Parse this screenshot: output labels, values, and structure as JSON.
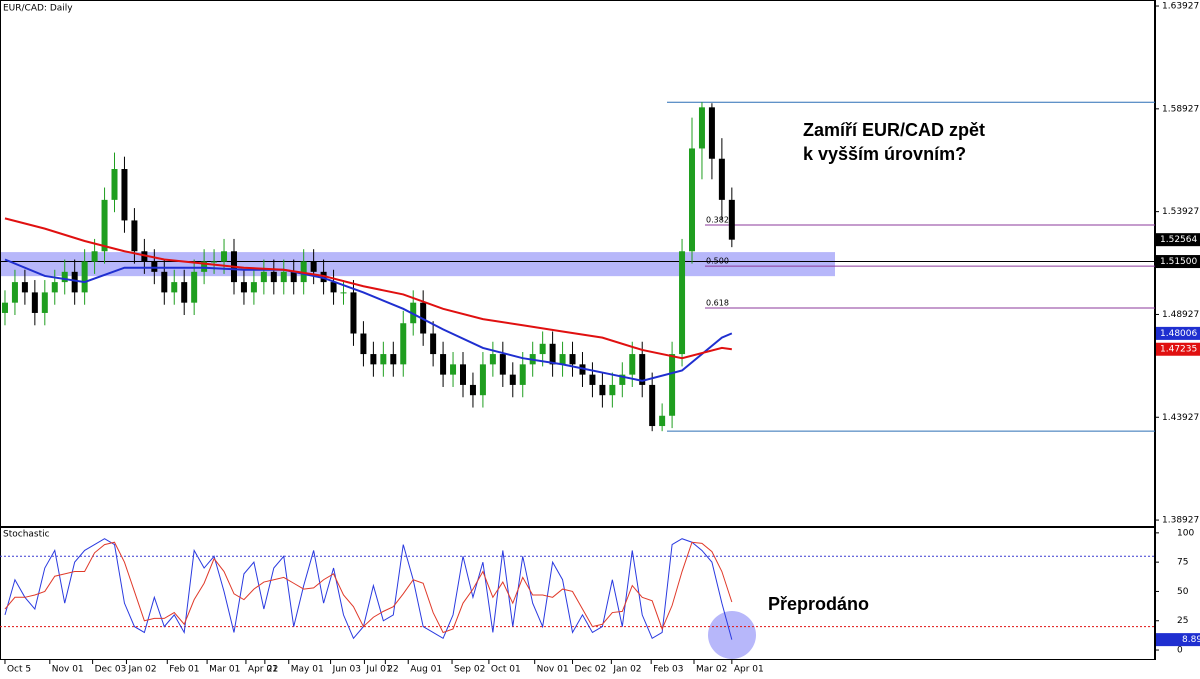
{
  "chart_data": {
    "type": "candlestick",
    "title": "EUR/CAD: Daily",
    "annotation": "Zamíří EUR/CAD zpět",
    "annotation2": "k vyšším úrovním?",
    "ylim": [
      1.3859,
      1.6422
    ],
    "yticks": [
      1.63927,
      1.58927,
      1.53927,
      1.48927,
      1.43927,
      1.38927
    ],
    "xlim": [
      -0.5,
      115.5
    ],
    "xticks": [
      {
        "value": 0,
        "label": "Oct 5"
      },
      {
        "value": 4.5,
        "label": "Nov 01"
      },
      {
        "value": 8.8,
        "label": "Dec 03"
      },
      {
        "value": 12.2,
        "label": "Jan 02"
      },
      {
        "value": 16.3,
        "label": "Feb 01"
      },
      {
        "value": 20.3,
        "label": "Mar 01"
      },
      {
        "value": 24.2,
        "label": "Apr 01"
      },
      {
        "value": 26.1,
        "label": "22"
      },
      {
        "value": 28.5,
        "label": "May 01"
      },
      {
        "value": 32.7,
        "label": "Jun 03"
      },
      {
        "value": 36.1,
        "label": "Jul 01"
      },
      {
        "value": 38.2,
        "label": "22"
      },
      {
        "value": 40.5,
        "label": "Aug 01"
      },
      {
        "value": 44.9,
        "label": "Sep 02"
      },
      {
        "value": 48.6,
        "label": "Oct 01"
      },
      {
        "value": 53.2,
        "label": "Nov 01"
      },
      {
        "value": 57,
        "label": "Dec 02"
      },
      {
        "value": 60.9,
        "label": "Jan 02"
      },
      {
        "value": 64.9,
        "label": "Feb 03"
      },
      {
        "value": 69.2,
        "label": "Mar 02"
      },
      {
        "value": 73,
        "label": "Apr 01"
      }
    ],
    "series": [
      {
        "name": "EUR/CAD",
        "up_color": "#1f9e1f",
        "down_color": "#000000",
        "ohlc": [
          [
            1.49,
            1.501,
            1.484,
            1.495
          ],
          [
            1.495,
            1.511,
            1.489,
            1.505
          ],
          [
            1.505,
            1.511,
            1.494,
            1.5
          ],
          [
            1.5,
            1.506,
            1.484,
            1.49
          ],
          [
            1.49,
            1.506,
            1.484,
            1.5
          ],
          [
            1.5,
            1.511,
            1.494,
            1.505
          ],
          [
            1.505,
            1.516,
            1.499,
            1.51
          ],
          [
            1.51,
            1.516,
            1.494,
            1.5
          ],
          [
            1.5,
            1.521,
            1.494,
            1.515
          ],
          [
            1.515,
            1.526,
            1.509,
            1.52
          ],
          [
            1.52,
            1.551,
            1.514,
            1.545
          ],
          [
            1.545,
            1.568,
            1.539,
            1.56
          ],
          [
            1.56,
            1.566,
            1.529,
            1.535
          ],
          [
            1.535,
            1.541,
            1.514,
            1.52
          ],
          [
            1.52,
            1.526,
            1.509,
            1.515
          ],
          [
            1.515,
            1.521,
            1.504,
            1.51
          ],
          [
            1.51,
            1.516,
            1.494,
            1.5
          ],
          [
            1.5,
            1.511,
            1.494,
            1.505
          ],
          [
            1.505,
            1.511,
            1.489,
            1.495
          ],
          [
            1.495,
            1.516,
            1.489,
            1.51
          ],
          [
            1.51,
            1.521,
            1.504,
            1.515
          ],
          [
            1.515,
            1.521,
            1.509,
            1.515
          ],
          [
            1.515,
            1.526,
            1.509,
            1.52
          ],
          [
            1.52,
            1.526,
            1.499,
            1.505
          ],
          [
            1.505,
            1.511,
            1.494,
            1.5
          ],
          [
            1.5,
            1.511,
            1.494,
            1.505
          ],
          [
            1.505,
            1.516,
            1.499,
            1.51
          ],
          [
            1.51,
            1.516,
            1.499,
            1.505
          ],
          [
            1.505,
            1.516,
            1.499,
            1.51
          ],
          [
            1.51,
            1.516,
            1.499,
            1.505
          ],
          [
            1.505,
            1.521,
            1.499,
            1.515
          ],
          [
            1.515,
            1.521,
            1.504,
            1.51
          ],
          [
            1.51,
            1.516,
            1.499,
            1.505
          ],
          [
            1.505,
            1.511,
            1.494,
            1.5
          ],
          [
            1.5,
            1.506,
            1.494,
            1.5
          ],
          [
            1.5,
            1.506,
            1.474,
            1.48
          ],
          [
            1.48,
            1.486,
            1.464,
            1.47
          ],
          [
            1.47,
            1.476,
            1.459,
            1.465
          ],
          [
            1.465,
            1.476,
            1.459,
            1.47
          ],
          [
            1.47,
            1.476,
            1.459,
            1.465
          ],
          [
            1.465,
            1.491,
            1.459,
            1.485
          ],
          [
            1.485,
            1.501,
            1.479,
            1.495
          ],
          [
            1.495,
            1.501,
            1.474,
            1.48
          ],
          [
            1.48,
            1.486,
            1.464,
            1.47
          ],
          [
            1.47,
            1.476,
            1.454,
            1.46
          ],
          [
            1.46,
            1.471,
            1.454,
            1.465
          ],
          [
            1.465,
            1.471,
            1.449,
            1.455
          ],
          [
            1.455,
            1.461,
            1.444,
            1.45
          ],
          [
            1.45,
            1.471,
            1.444,
            1.465
          ],
          [
            1.465,
            1.476,
            1.459,
            1.47
          ],
          [
            1.47,
            1.476,
            1.454,
            1.46
          ],
          [
            1.46,
            1.466,
            1.449,
            1.455
          ],
          [
            1.455,
            1.471,
            1.449,
            1.465
          ],
          [
            1.465,
            1.476,
            1.459,
            1.47
          ],
          [
            1.47,
            1.481,
            1.464,
            1.475
          ],
          [
            1.475,
            1.481,
            1.459,
            1.465
          ],
          [
            1.465,
            1.476,
            1.459,
            1.47
          ],
          [
            1.47,
            1.476,
            1.459,
            1.465
          ],
          [
            1.465,
            1.471,
            1.454,
            1.46
          ],
          [
            1.46,
            1.466,
            1.449,
            1.455
          ],
          [
            1.455,
            1.461,
            1.444,
            1.45
          ],
          [
            1.45,
            1.461,
            1.444,
            1.455
          ],
          [
            1.455,
            1.466,
            1.449,
            1.46
          ],
          [
            1.46,
            1.476,
            1.454,
            1.47
          ],
          [
            1.47,
            1.476,
            1.449,
            1.455
          ],
          [
            1.455,
            1.461,
            1.4325,
            1.435
          ],
          [
            1.435,
            1.446,
            1.4325,
            1.44
          ],
          [
            1.44,
            1.476,
            1.434,
            1.47
          ],
          [
            1.47,
            1.526,
            1.464,
            1.52
          ],
          [
            1.52,
            1.585,
            1.514,
            1.57
          ],
          [
            1.57,
            1.5925,
            1.555,
            1.59
          ],
          [
            1.59,
            1.592,
            1.555,
            1.565
          ],
          [
            1.565,
            1.575,
            1.535,
            1.545
          ],
          [
            1.545,
            1.551,
            1.522,
            1.52564
          ]
        ]
      }
    ],
    "ma_x": [
      0,
      4,
      8,
      12,
      16,
      20,
      24,
      28,
      32,
      36,
      40,
      44,
      48,
      52,
      56,
      60,
      64,
      68,
      72,
      73
    ],
    "moving_averages": [
      {
        "color": "#1f2fd0",
        "values": [
          1.516,
          1.508,
          1.505,
          1.512,
          1.512,
          1.512,
          1.511,
          1.511,
          1.507,
          1.5,
          1.492,
          1.482,
          1.473,
          1.468,
          1.465,
          1.461,
          1.457,
          1.462,
          1.478,
          1.48006
        ]
      },
      {
        "color": "#e01010",
        "values": [
          1.536,
          1.531,
          1.525,
          1.52,
          1.516,
          1.514,
          1.512,
          1.511,
          1.508,
          1.503,
          1.499,
          1.492,
          1.487,
          1.484,
          1.481,
          1.478,
          1.472,
          1.468,
          1.473,
          1.47235
        ]
      }
    ],
    "zone": {
      "low": 1.5079,
      "high": 1.5196,
      "color": "#7b7bf5"
    },
    "hlines": [
      {
        "value": 1.5925,
        "color": "#2c6fb5"
      },
      {
        "value": 1.4325,
        "color": "#2c6fb5"
      },
      {
        "value": 1.515,
        "color": "#000000"
      }
    ],
    "fib_levels": [
      {
        "level": "0.382",
        "price": 1.5328
      },
      {
        "level": "0.500",
        "price": 1.5128
      },
      {
        "level": "0.618",
        "price": 1.4924
      }
    ],
    "fib_color": "#8b3a9b",
    "price_tags": [
      1.52564,
      {
        "value": 1.515,
        "label": "1.51500"
      },
      1.48006,
      1.47235
    ],
    "price_tag_colors": [
      "#000000",
      "#000000",
      "#1f2fd0",
      "#e01010"
    ],
    "stochastic": {
      "title": "Stochastic",
      "annotation": "Přeprodáno",
      "ylim": [
        -8.5,
        105
      ],
      "yticks": [
        100,
        75,
        50,
        25,
        0
      ],
      "levels": [
        80,
        20
      ],
      "level_colors": [
        "#3a3ad0",
        "#e01010"
      ],
      "series": [
        {
          "color": "#2a3ae0",
          "values": [
            30,
            60,
            45,
            35,
            70,
            85,
            40,
            75,
            85,
            90,
            95,
            90,
            40,
            20,
            15,
            45,
            20,
            30,
            15,
            85,
            70,
            80,
            50,
            15,
            65,
            75,
            35,
            70,
            80,
            20,
            55,
            85,
            40,
            70,
            30,
            10,
            20,
            55,
            25,
            30,
            90,
            60,
            20,
            15,
            10,
            30,
            80,
            45,
            75,
            15,
            85,
            20,
            80,
            40,
            20,
            75,
            60,
            15,
            30,
            15,
            20,
            60,
            20,
            85,
            30,
            10,
            15,
            90,
            95,
            92,
            85,
            75,
            40,
            8.89
          ]
        },
        {
          "color": "#e03a2a",
          "values": [
            35,
            45,
            45,
            47,
            50,
            63,
            65,
            67,
            67,
            83,
            90,
            92,
            75,
            50,
            25,
            27,
            27,
            32,
            22,
            43,
            57,
            78,
            67,
            48,
            43,
            52,
            58,
            60,
            62,
            57,
            52,
            53,
            60,
            65,
            47,
            37,
            20,
            28,
            33,
            37,
            48,
            60,
            57,
            32,
            15,
            18,
            40,
            52,
            67,
            45,
            58,
            40,
            62,
            47,
            47,
            45,
            52,
            50,
            35,
            20,
            22,
            32,
            33,
            55,
            45,
            42,
            18,
            38,
            67,
            92,
            91,
            84,
            67,
            41
          ]
        }
      ],
      "tag": 8.89,
      "tag_color": "#1f2fd0"
    }
  }
}
